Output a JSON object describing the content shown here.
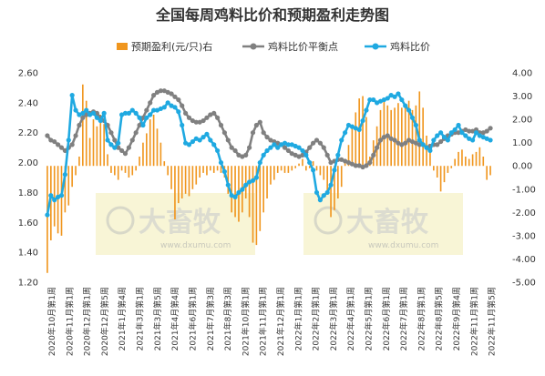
{
  "watermark": {
    "brand": "大畜牧",
    "url": "www.dxumu.com"
  },
  "colors": {
    "profit": "#f0961e",
    "breakeven": "#808080",
    "ratio": "#1fa9e1",
    "watermark_bg": "#f7f3cf"
  },
  "chart_data": {
    "type": "bar+line",
    "title": "全国每周鸡料比价和预期盈利走势图",
    "legend_position": "top",
    "grid": false,
    "x_labels": [
      "2020年10月第1周",
      "2020年11月第1周",
      "2020年12月第1周",
      "2020年12月第5周",
      "2021年1月第4周",
      "2021年3月第1周",
      "2021年3月第5周",
      "2021年4月第4周",
      "2021年6月第1周",
      "2021年7月第3周",
      "2021年8月第3周",
      "2021年10月第1周",
      "2021年11月第1周",
      "2021年12月第1周",
      "2022年1月第1周",
      "2022年2月第1周",
      "2022年3月第1周",
      "2022年4月第1周",
      "2022年5月第1周",
      "2022年6月第1周",
      "2022年7月第1周",
      "2022年8月第1周",
      "2022年8月第5周",
      "2022年9月第4周",
      "2022年11月第1周",
      "2022年11月第5周"
    ],
    "left_axis": {
      "ylim": [
        1.2,
        2.6
      ],
      "ticks": [
        "1.20",
        "1.40",
        "1.60",
        "1.80",
        "2.00",
        "2.20",
        "2.40",
        "2.60"
      ]
    },
    "right_axis": {
      "ylim": [
        -5.0,
        4.0
      ],
      "ticks": [
        "-5.00",
        "-4.00",
        "-3.00",
        "-2.00",
        "-1.00",
        "0.00",
        "1.00",
        "2.00",
        "3.00",
        "4.00"
      ]
    },
    "series": [
      {
        "name": "预期盈利(元/只)右",
        "type": "bar",
        "axis": "right",
        "values": [
          -4.6,
          -3.2,
          -2.6,
          -2.9,
          -3.0,
          -2.0,
          -1.7,
          -0.9,
          -0.4,
          0.4,
          3.5,
          2.8,
          1.2,
          2.0,
          1.7,
          2.2,
          1.8,
          0.5,
          -0.3,
          -0.4,
          -0.6,
          -0.2,
          -0.3,
          -0.5,
          -0.4,
          -0.2,
          0.4,
          1.0,
          1.4,
          2.0,
          2.2,
          1.6,
          1.0,
          0.2,
          -0.4,
          -1.0,
          -2.3,
          -1.6,
          -1.4,
          -1.2,
          -1.3,
          -1.0,
          -0.8,
          -0.5,
          -0.3,
          -0.4,
          -0.2,
          -0.3,
          -0.2,
          -0.3,
          -0.5,
          -1.2,
          -2.0,
          -2.2,
          -2.4,
          -2.0,
          -1.4,
          -2.2,
          -3.3,
          -3.4,
          -2.8,
          -2.0,
          -1.4,
          -0.8,
          -0.6,
          -0.3,
          -0.2,
          -0.3,
          -0.3,
          -0.2,
          -0.1,
          0.1,
          0.3,
          -0.2,
          -0.1,
          0.2,
          -0.2,
          -0.4,
          -0.6,
          -1.1,
          -2.2,
          -1.9,
          -1.4,
          -0.9,
          0.3,
          0.9,
          1.6,
          2.3,
          2.9,
          3.0,
          2.1,
          0.4,
          1.1,
          1.7,
          2.4,
          2.8,
          2.6,
          2.4,
          2.5,
          2.7,
          2.5,
          2.6,
          2.8,
          2.4,
          2.6,
          3.2,
          2.5,
          1.3,
          0.6,
          -0.2,
          -0.5,
          -1.1,
          -0.7,
          -0.3,
          -0.1,
          0.3,
          0.6,
          0.7,
          0.4,
          0.3,
          0.5,
          0.6,
          0.8,
          0.4,
          -0.6,
          -0.4
        ]
      },
      {
        "name": "鸡料比价平衡点",
        "type": "line",
        "axis": "left",
        "values": [
          2.18,
          2.15,
          2.14,
          2.12,
          2.1,
          2.08,
          2.1,
          2.12,
          2.18,
          2.25,
          2.3,
          2.32,
          2.33,
          2.34,
          2.33,
          2.3,
          2.28,
          2.25,
          2.2,
          2.15,
          2.1,
          2.08,
          2.06,
          2.1,
          2.15,
          2.2,
          2.25,
          2.3,
          2.35,
          2.4,
          2.45,
          2.47,
          2.48,
          2.48,
          2.47,
          2.46,
          2.44,
          2.42,
          2.38,
          2.33,
          2.3,
          2.28,
          2.27,
          2.27,
          2.28,
          2.3,
          2.32,
          2.33,
          2.3,
          2.25,
          2.2,
          2.15,
          2.1,
          2.08,
          2.05,
          2.04,
          2.05,
          2.1,
          2.2,
          2.25,
          2.27,
          2.2,
          2.17,
          2.15,
          2.14,
          2.13,
          2.12,
          2.1,
          2.08,
          2.06,
          2.05,
          2.04,
          2.05,
          2.07,
          2.1,
          2.13,
          2.15,
          2.13,
          2.1,
          2.05,
          2.0,
          2.01,
          2.02,
          2.02,
          2.01,
          2.0,
          1.99,
          1.98,
          1.98,
          1.97,
          1.98,
          2.0,
          2.05,
          2.1,
          2.15,
          2.17,
          2.18,
          2.16,
          2.15,
          2.13,
          2.12,
          2.13,
          2.15,
          2.14,
          2.13,
          2.12,
          2.12,
          2.1,
          2.11,
          2.12,
          2.12,
          2.14,
          2.16,
          2.18,
          2.19,
          2.2,
          2.2,
          2.21,
          2.22,
          2.21,
          2.21,
          2.22,
          2.2,
          2.2,
          2.21,
          2.23
        ]
      },
      {
        "name": "鸡料比价",
        "type": "line",
        "axis": "left",
        "values": [
          1.65,
          1.78,
          1.75,
          1.77,
          1.78,
          1.92,
          2.15,
          2.45,
          2.35,
          2.32,
          2.33,
          2.35,
          2.32,
          2.33,
          2.3,
          2.28,
          2.33,
          2.15,
          2.12,
          2.1,
          2.13,
          2.32,
          2.33,
          2.33,
          2.35,
          2.33,
          2.3,
          2.25,
          2.3,
          2.32,
          2.35,
          2.35,
          2.36,
          2.37,
          2.4,
          2.38,
          2.37,
          2.34,
          2.25,
          2.13,
          2.12,
          2.14,
          2.16,
          2.15,
          2.17,
          2.19,
          2.15,
          2.12,
          2.08,
          2.0,
          1.94,
          1.85,
          1.78,
          1.77,
          1.8,
          1.82,
          1.85,
          1.87,
          1.88,
          1.9,
          2.0,
          2.05,
          2.08,
          2.1,
          2.12,
          2.1,
          2.12,
          2.13,
          2.12,
          2.12,
          2.11,
          2.1,
          2.08,
          2.05,
          2.0,
          1.95,
          1.8,
          1.75,
          1.78,
          1.8,
          1.85,
          1.95,
          2.05,
          2.15,
          2.2,
          2.25,
          2.24,
          2.23,
          2.22,
          2.28,
          2.35,
          2.42,
          2.42,
          2.4,
          2.41,
          2.42,
          2.43,
          2.45,
          2.44,
          2.46,
          2.42,
          2.38,
          2.35,
          2.3,
          2.25,
          2.15,
          2.12,
          2.1,
          2.08,
          2.15,
          2.18,
          2.2,
          2.17,
          2.15,
          2.2,
          2.22,
          2.25,
          2.2,
          2.18,
          2.16,
          2.15,
          2.2,
          2.18,
          2.17,
          2.16,
          2.15
        ]
      }
    ]
  }
}
